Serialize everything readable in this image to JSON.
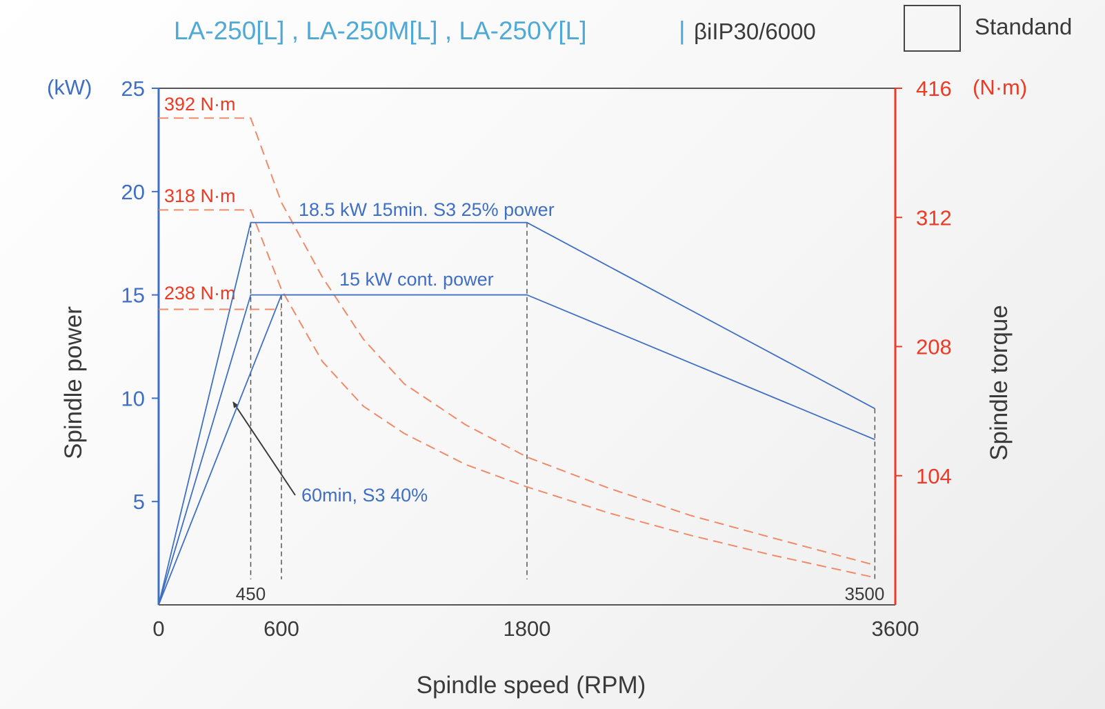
{
  "header": {
    "models": "LA-250[L] , LA-250M[L] , LA-250Y[L]",
    "separator": "|",
    "motor": "βiIP30/6000",
    "legend_label": "Standand"
  },
  "colors": {
    "power": "#3f6fc4",
    "torque": "#ee3a24",
    "torque_dash": "#f08a68",
    "models": "#4ea9d6",
    "dark": "#3a3a3a",
    "guide": "#555555"
  },
  "chart_data": {
    "type": "line",
    "xlabel": "Spindle speed (RPM)",
    "ylabel_left": "Spindle power",
    "ylabel_right": "Spindle torque",
    "unit_left": "(kW)",
    "unit_right": "(N·m)",
    "xlim": [
      0,
      3600
    ],
    "ylim_left": [
      0,
      25
    ],
    "ylim_right": [
      0,
      416
    ],
    "x_ticks": [
      0,
      600,
      1800,
      3600
    ],
    "y_left_ticks": [
      5,
      10,
      15,
      20,
      25
    ],
    "y_right_ticks": [
      104,
      208,
      312,
      416
    ],
    "x_markers": [
      450,
      3500
    ],
    "grid": false,
    "power_series": [
      {
        "name": "18.5 kW 15min. S3 25% power",
        "points": [
          [
            0,
            0
          ],
          [
            450,
            18.5
          ],
          [
            1800,
            18.5
          ],
          [
            3500,
            9.5
          ]
        ]
      },
      {
        "name": "60min, S3 40%",
        "points": [
          [
            0,
            0
          ],
          [
            450,
            15
          ],
          [
            1800,
            15
          ]
        ]
      },
      {
        "name": "15 kW cont. power",
        "points": [
          [
            0,
            0
          ],
          [
            600,
            15
          ],
          [
            1800,
            15
          ],
          [
            3500,
            8
          ]
        ]
      }
    ],
    "torque_series": [
      {
        "name": "392 N·m",
        "points": [
          [
            0,
            392
          ],
          [
            450,
            392
          ],
          [
            600,
            324
          ],
          [
            800,
            264
          ],
          [
            1000,
            214
          ],
          [
            1200,
            178
          ],
          [
            1500,
            145
          ],
          [
            1800,
            119
          ],
          [
            2200,
            94
          ],
          [
            2600,
            72
          ],
          [
            3000,
            54
          ],
          [
            3500,
            32
          ]
        ]
      },
      {
        "name": "318 N·m",
        "points": [
          [
            0,
            318
          ],
          [
            450,
            318
          ],
          [
            600,
            254
          ],
          [
            800,
            196
          ],
          [
            1000,
            160
          ],
          [
            1200,
            138
          ],
          [
            1500,
            113
          ],
          [
            1800,
            95
          ],
          [
            2200,
            74
          ],
          [
            2600,
            56
          ],
          [
            3000,
            40
          ],
          [
            3500,
            22
          ]
        ]
      },
      {
        "name": "238 N·m",
        "points": [
          [
            0,
            238
          ],
          [
            600,
            238
          ]
        ]
      }
    ],
    "annotations": [
      {
        "text": "18.5 kW 15min. S3 25% power",
        "series": "power"
      },
      {
        "text": "15 kW cont. power",
        "series": "power"
      },
      {
        "text": "60min, S3 40%",
        "series": "power"
      },
      {
        "text": "392 N·m",
        "series": "torque"
      },
      {
        "text": "318 N·m",
        "series": "torque"
      },
      {
        "text": "238 N·m",
        "series": "torque"
      }
    ]
  }
}
